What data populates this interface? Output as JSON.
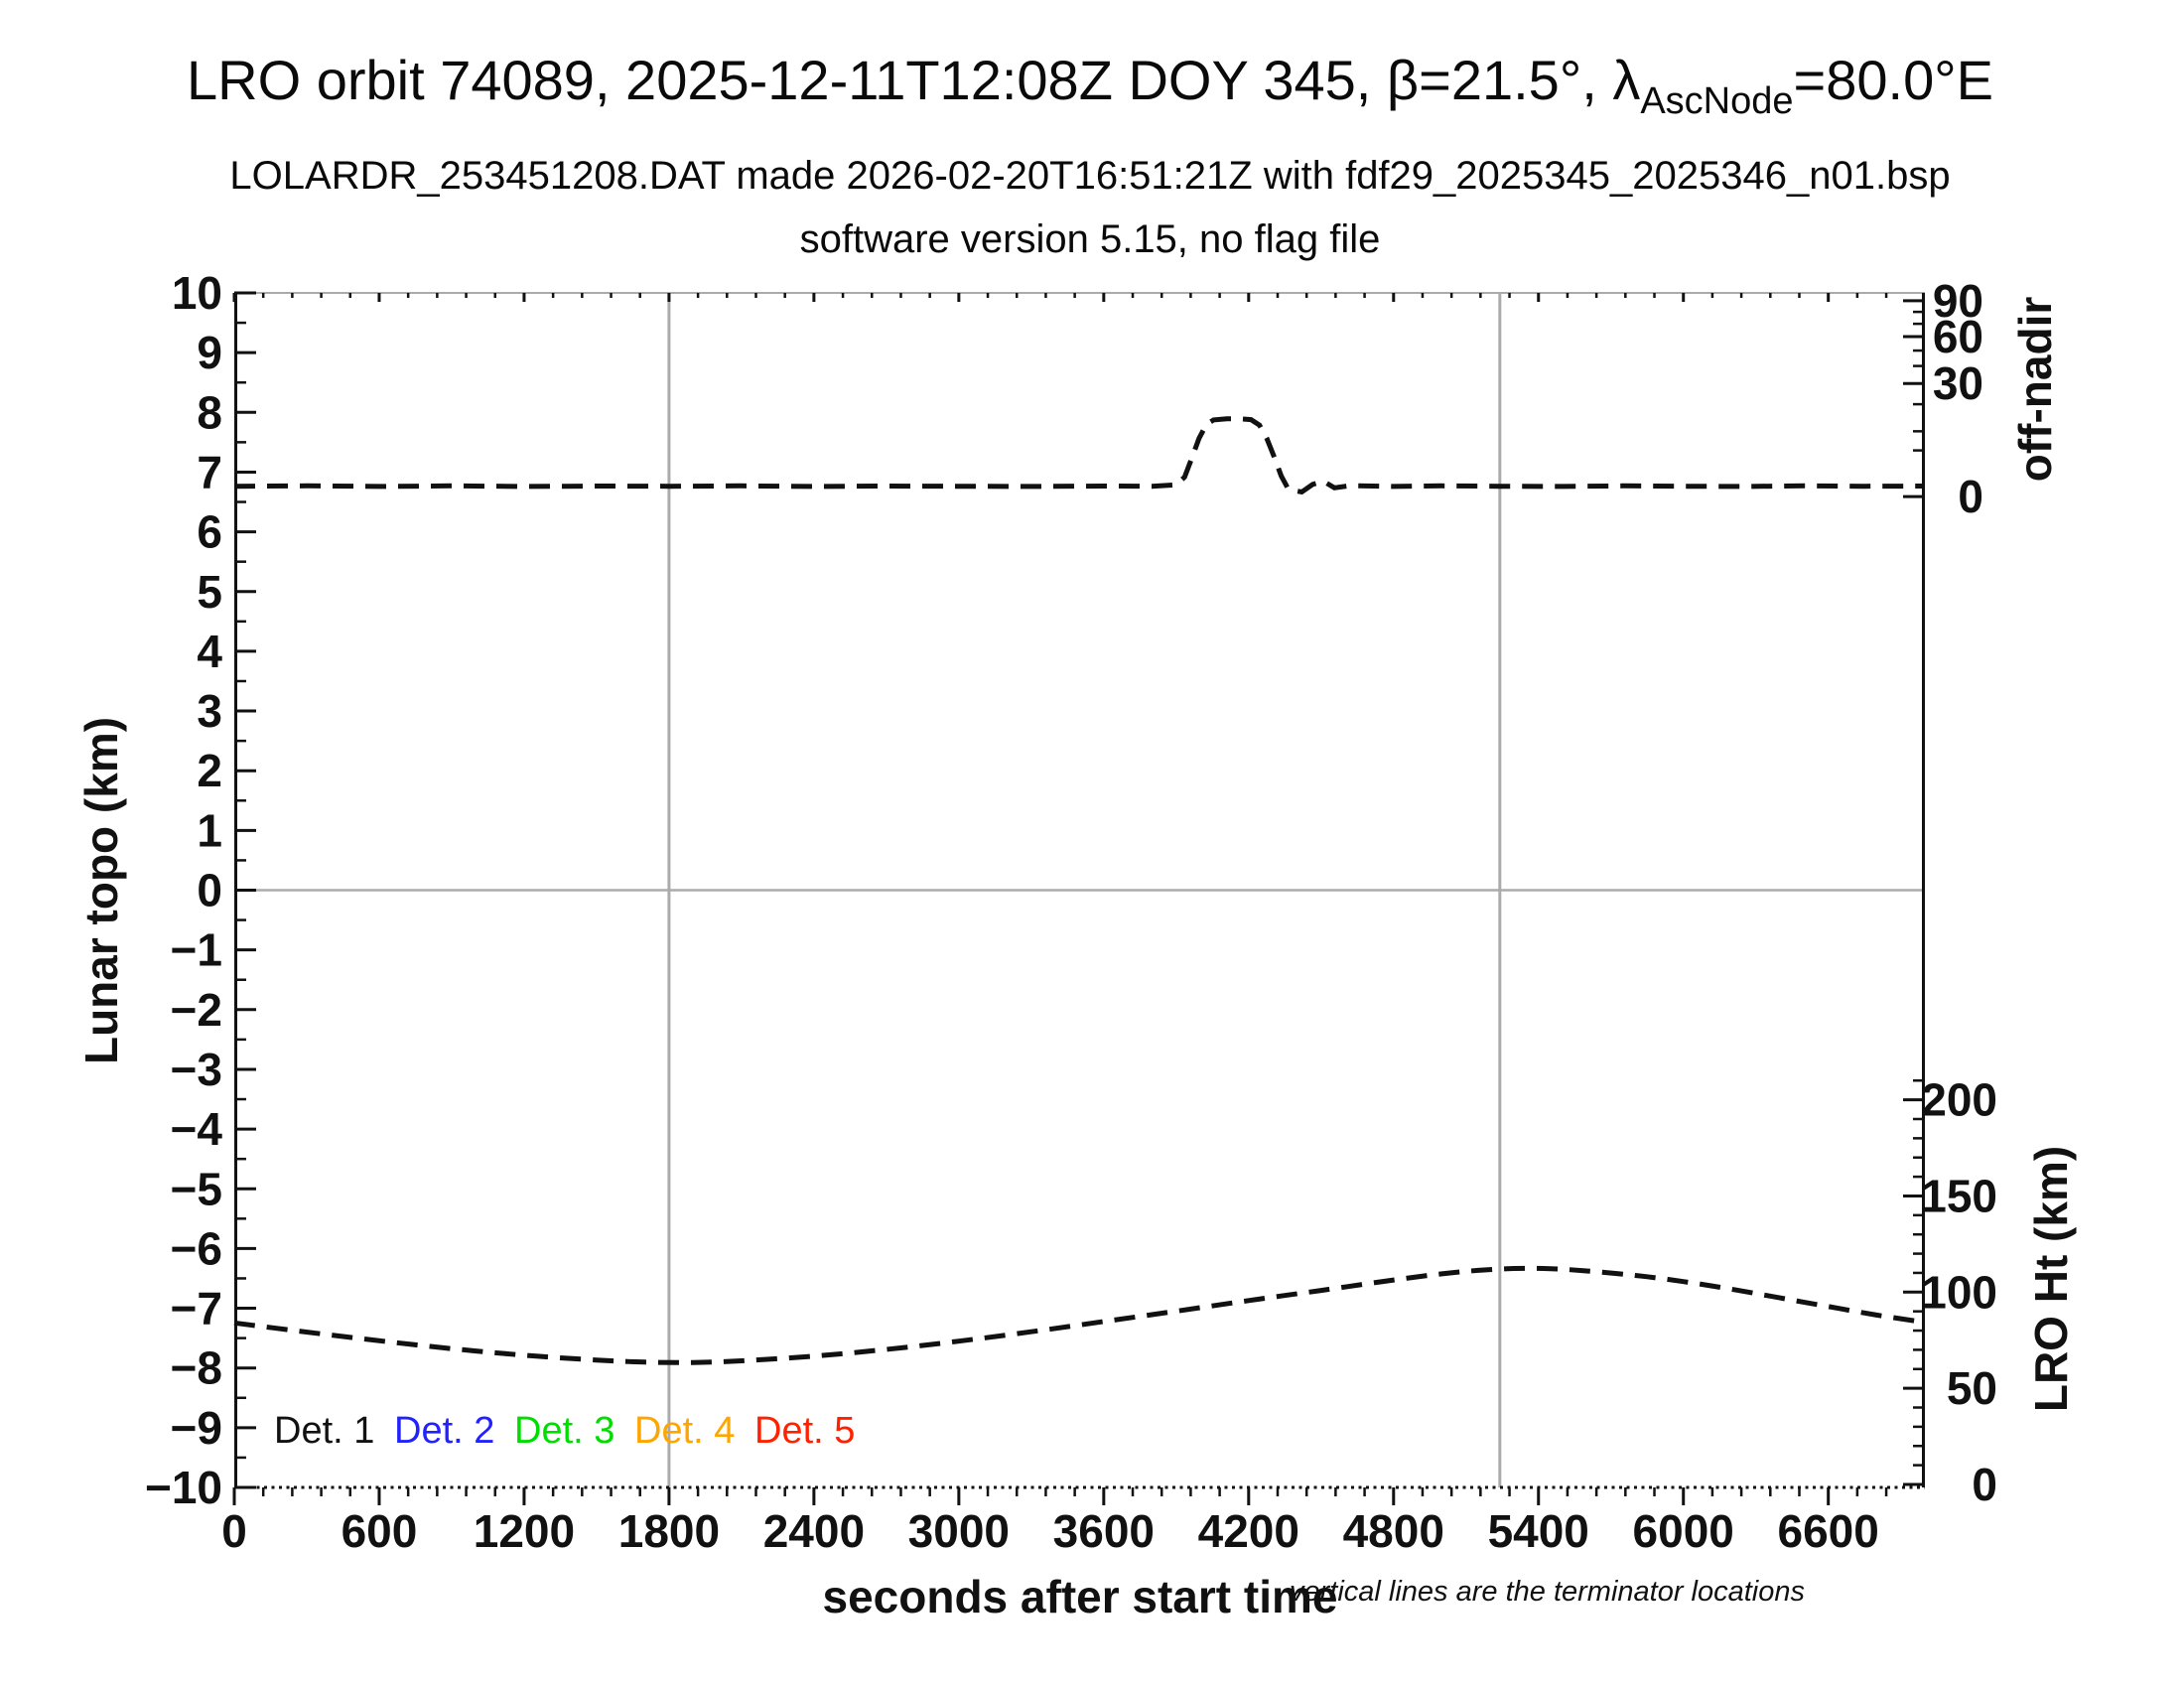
{
  "title": {
    "prefix": "LRO orbit 74089, 2025-12-11T12:08Z DOY 345, β=21.5°, λ",
    "subscript": "AscNode",
    "suffix": "=80.0°E"
  },
  "subtitle1": "LOLARDR_253451208.DAT made 2026-02-20T16:51:21Z with fdf29_2025345_2025346_n01.bsp",
  "subtitle2": "software version 5.15, no flag file",
  "footnote": "vertical lines are the terminator locations",
  "colors": {
    "det1": "#111111",
    "det2": "#2222ff",
    "det3": "#00dd00",
    "det4": "#ffa500",
    "det5": "#ff2200",
    "gray_lines": "#ababab",
    "curve": "#111111"
  },
  "legend": {
    "items": [
      {
        "label": "Det. 1",
        "color": "#111111"
      },
      {
        "label": "Det. 2",
        "color": "#2222ff"
      },
      {
        "label": "Det. 3",
        "color": "#00dd00"
      },
      {
        "label": "Det. 4",
        "color": "#ffa500"
      },
      {
        "label": "Det. 5",
        "color": "#ff2200"
      }
    ]
  },
  "chart_data": {
    "type": "line",
    "x_axis": {
      "label": "seconds after start time",
      "min": 0,
      "max": 7000,
      "major_ticks": [
        0,
        600,
        1200,
        1800,
        2400,
        3000,
        3600,
        4200,
        4800,
        5400,
        6000,
        6600
      ],
      "minor_step": 120
    },
    "y_axis_left": {
      "label": "Lunar topo (km)",
      "min": -10,
      "max": 10,
      "major_ticks": [
        10,
        9,
        8,
        7,
        6,
        5,
        4,
        3,
        2,
        1,
        0,
        -1,
        -2,
        -3,
        -4,
        -5,
        -6,
        -7,
        -8,
        -9,
        -10
      ],
      "minor_step": 0.5
    },
    "y_axis_right_top": {
      "label": "off-nadir",
      "unit": "degrees",
      "scale": "sqrt",
      "major_ticks": [
        90,
        60,
        30,
        0
      ],
      "minor_ticks": [
        80,
        70,
        50,
        40,
        20,
        10,
        5
      ]
    },
    "y_axis_right_bottom": {
      "label": "LRO Ht (km)",
      "major_ticks": [
        200,
        150,
        100,
        50,
        0
      ],
      "minor_step": 10,
      "max": 210
    },
    "terminator_lines_seconds": [
      1800,
      5240
    ],
    "horizontal_zero_line": 0,
    "series": [
      {
        "name": "off-nadir angle (deg)",
        "axis": "right_top",
        "line_style": "dashed",
        "color": "#111111",
        "points": [
          [
            0,
            0.25
          ],
          [
            300,
            0.27
          ],
          [
            600,
            0.24
          ],
          [
            900,
            0.27
          ],
          [
            1200,
            0.24
          ],
          [
            1500,
            0.26
          ],
          [
            1800,
            0.25
          ],
          [
            2100,
            0.27
          ],
          [
            2400,
            0.24
          ],
          [
            2700,
            0.26
          ],
          [
            3000,
            0.25
          ],
          [
            3300,
            0.24
          ],
          [
            3600,
            0.26
          ],
          [
            3800,
            0.25
          ],
          [
            3900,
            0.32
          ],
          [
            3935,
            0.9
          ],
          [
            3965,
            3.5
          ],
          [
            3995,
            8.0
          ],
          [
            4025,
            12.2
          ],
          [
            4055,
            13.8
          ],
          [
            4110,
            14.2
          ],
          [
            4160,
            14.2
          ],
          [
            4210,
            13.9
          ],
          [
            4245,
            12.0
          ],
          [
            4275,
            8.0
          ],
          [
            4305,
            3.8
          ],
          [
            4335,
            1.0
          ],
          [
            4365,
            0.12
          ],
          [
            4420,
            0.05
          ],
          [
            4465,
            0.35
          ],
          [
            4510,
            0.55
          ],
          [
            4555,
            0.18
          ],
          [
            4620,
            0.28
          ],
          [
            4800,
            0.24
          ],
          [
            5000,
            0.27
          ],
          [
            5240,
            0.25
          ],
          [
            5500,
            0.24
          ],
          [
            5750,
            0.27
          ],
          [
            6000,
            0.25
          ],
          [
            6250,
            0.24
          ],
          [
            6500,
            0.27
          ],
          [
            6750,
            0.25
          ],
          [
            7000,
            0.26
          ]
        ]
      },
      {
        "name": "LRO height (km)",
        "axis": "right_bottom",
        "line_style": "dashed",
        "color": "#111111",
        "points": [
          [
            0,
            84.0
          ],
          [
            250,
            80.0
          ],
          [
            500,
            76.2
          ],
          [
            750,
            72.6
          ],
          [
            1000,
            69.4
          ],
          [
            1250,
            66.7
          ],
          [
            1500,
            64.7
          ],
          [
            1700,
            63.6
          ],
          [
            1900,
            63.4
          ],
          [
            2100,
            64.3
          ],
          [
            2400,
            66.7
          ],
          [
            2700,
            70.2
          ],
          [
            3000,
            74.5
          ],
          [
            3300,
            79.4
          ],
          [
            3600,
            84.7
          ],
          [
            3900,
            90.1
          ],
          [
            4200,
            95.6
          ],
          [
            4500,
            100.9
          ],
          [
            4800,
            106.3
          ],
          [
            5000,
            109.5
          ],
          [
            5150,
            111.3
          ],
          [
            5300,
            112.3
          ],
          [
            5450,
            112.2
          ],
          [
            5600,
            111.0
          ],
          [
            5800,
            108.7
          ],
          [
            6000,
            105.5
          ],
          [
            6200,
            101.5
          ],
          [
            6400,
            97.0
          ],
          [
            6600,
            92.5
          ],
          [
            6800,
            88.1
          ],
          [
            7000,
            84.3
          ]
        ]
      }
    ]
  }
}
